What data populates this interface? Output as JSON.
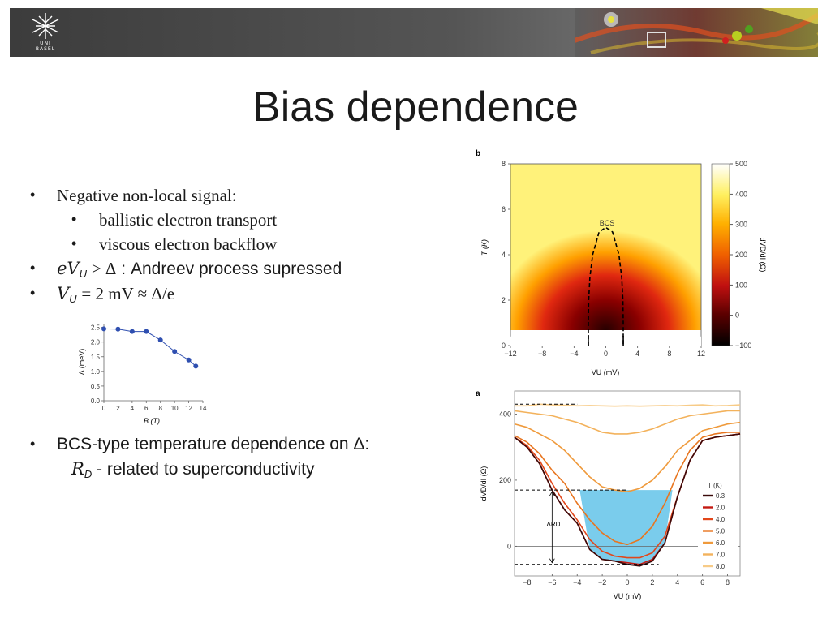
{
  "banner": {
    "logo_line1": "UNI",
    "logo_line2": "BASEL"
  },
  "slide": {
    "title": "Bias dependence",
    "bullets": {
      "b1": "Negative non-local signal:",
      "b1a": "ballistic electron transport",
      "b1b": "viscous electron backflow",
      "b2_tail": ": Andreev process supressed",
      "b4": "BCS-type temperature dependence on Δ:",
      "b4_tail": "- related to superconductivity"
    },
    "math": {
      "eV": "eV",
      "U": "U",
      "gt_delta": "> Δ",
      "V": "V",
      "eq": "= 2 mV ≈ Δ/e",
      "R": "R",
      "D": "D"
    }
  },
  "chart_data": [
    {
      "type": "line",
      "xlabel": "B (T)",
      "ylabel": "Δ (meV)",
      "x_ticks": [
        "0",
        "2",
        "4",
        "6",
        "8",
        "10",
        "12",
        "14"
      ],
      "y_ticks": [
        "0.0",
        "0.5",
        "1.0",
        "1.5",
        "2.0",
        "2.5"
      ],
      "xlim": [
        0,
        14
      ],
      "ylim": [
        0,
        2.6
      ],
      "x": [
        0,
        2,
        4,
        6,
        8,
        10,
        12,
        13
      ],
      "values": [
        2.45,
        2.44,
        2.36,
        2.36,
        2.07,
        1.68,
        1.39,
        1.18
      ],
      "color": "#2f4fb0"
    },
    {
      "type": "heatmap",
      "panel_label": "b",
      "xlabel": "VU (mV)",
      "ylabel": "T (K)",
      "x_ticks": [
        "−12",
        "−8",
        "−4",
        "0",
        "4",
        "8",
        "12"
      ],
      "y_ticks": [
        "0",
        "2",
        "4",
        "6",
        "8"
      ],
      "xlim": [
        -12,
        12
      ],
      "ylim": [
        0,
        8
      ],
      "annotation": "BCS",
      "colorbar": {
        "label": "dVD/dI (Ω)",
        "ticks": [
          "500",
          "400",
          "300",
          "200",
          "100",
          "0",
          "−100"
        ],
        "range": [
          -100,
          500
        ]
      },
      "bcs_curve": {
        "T": [
          0,
          1,
          2,
          3,
          4,
          5,
          5.2
        ],
        "VU": [
          2.2,
          2.2,
          2.15,
          2.0,
          1.65,
          0.85,
          0
        ]
      }
    },
    {
      "type": "line",
      "panel_label": "a",
      "xlabel": "VU (mV)",
      "ylabel": "dVD/dI (Ω)",
      "x_ticks": [
        "−8",
        "−6",
        "−4",
        "−2",
        "0",
        "2",
        "4",
        "6",
        "8"
      ],
      "y_ticks": [
        "0",
        "200",
        "400"
      ],
      "xlim": [
        -9,
        9
      ],
      "ylim": [
        -90,
        470
      ],
      "annotation": "ΔRD",
      "legend_title": "T (K)",
      "legend_position": "right",
      "x": [
        -9,
        -8,
        -7,
        -6,
        -5,
        -4,
        -3,
        -2,
        -1,
        0,
        1,
        2,
        3,
        4,
        5,
        6,
        7,
        8,
        9
      ],
      "series": [
        {
          "name": "0.3",
          "color": "#3b0a0a",
          "values": [
            330,
            300,
            250,
            170,
            110,
            70,
            -10,
            -40,
            -45,
            -55,
            -60,
            -45,
            10,
            150,
            260,
            320,
            330,
            335,
            340
          ]
        },
        {
          "name": "2.0",
          "color": "#c41a12",
          "values": [
            330,
            300,
            250,
            170,
            110,
            70,
            -10,
            -40,
            -45,
            -50,
            -55,
            -40,
            10,
            150,
            260,
            320,
            330,
            335,
            340
          ]
        },
        {
          "name": "4.0",
          "color": "#e2461a",
          "values": [
            330,
            305,
            260,
            190,
            130,
            80,
            20,
            -15,
            -30,
            -35,
            -35,
            -20,
            30,
            150,
            260,
            320,
            330,
            335,
            340
          ]
        },
        {
          "name": "5.0",
          "color": "#e8751f",
          "values": [
            335,
            315,
            280,
            230,
            190,
            130,
            80,
            40,
            15,
            5,
            20,
            60,
            130,
            220,
            290,
            330,
            340,
            345,
            345
          ]
        },
        {
          "name": "6.0",
          "color": "#ef9a3c",
          "values": [
            370,
            360,
            340,
            320,
            290,
            250,
            210,
            180,
            170,
            165,
            175,
            200,
            240,
            290,
            320,
            350,
            360,
            370,
            375
          ]
        },
        {
          "name": "7.0",
          "color": "#f3b25c",
          "values": [
            410,
            405,
            400,
            395,
            385,
            375,
            360,
            345,
            340,
            340,
            345,
            355,
            370,
            385,
            395,
            400,
            405,
            410,
            410
          ]
        },
        {
          "name": "8.0",
          "color": "#f7cb87",
          "values": [
            425,
            425,
            430,
            428,
            427,
            425,
            426,
            425,
            424,
            425,
            424,
            425,
            426,
            425,
            427,
            428,
            425,
            426,
            428
          ]
        }
      ]
    }
  ]
}
